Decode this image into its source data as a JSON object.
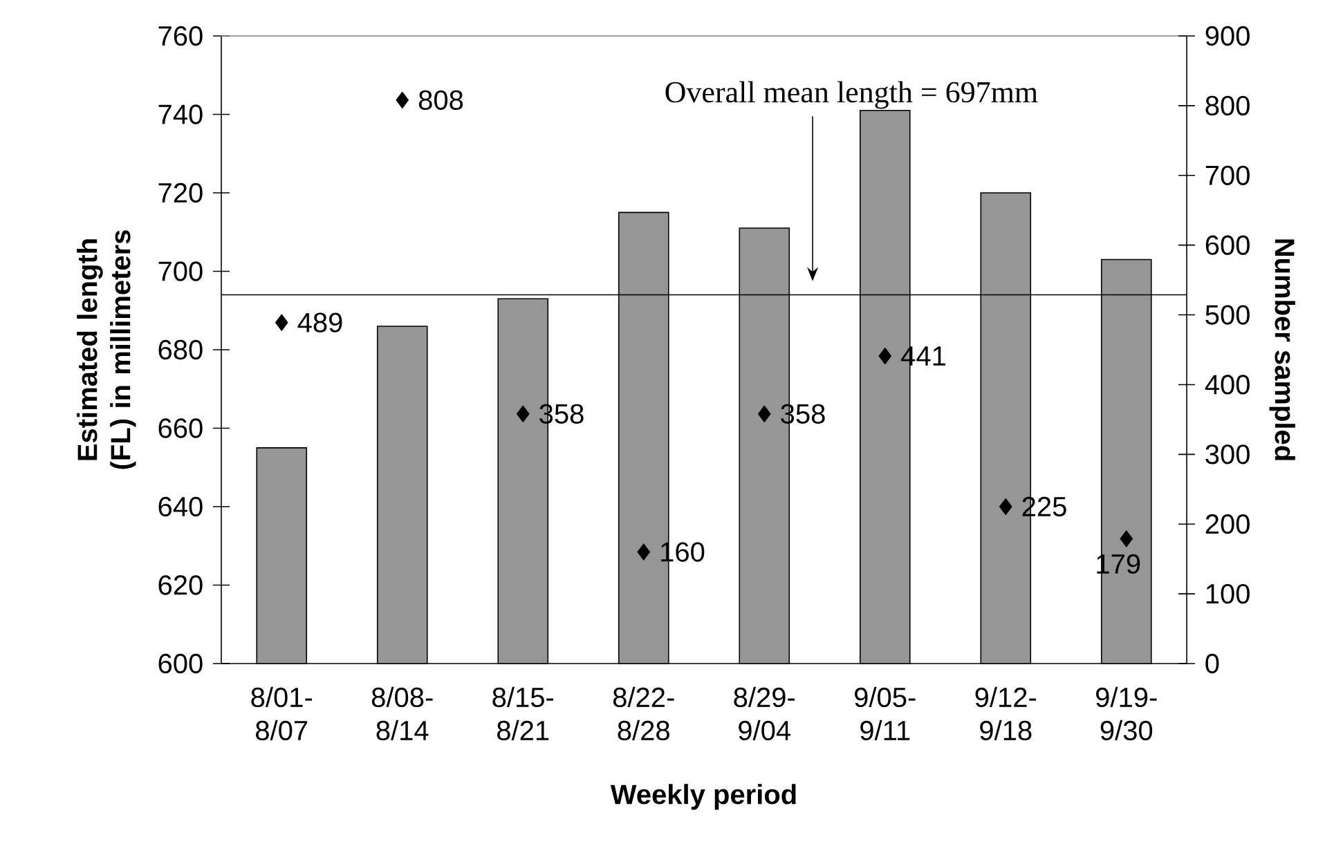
{
  "chart_data": {
    "type": "bar",
    "categories": [
      "8/01-8/07",
      "8/08-8/14",
      "8/15-8/21",
      "8/22-8/28",
      "8/29-9/04",
      "9/05-9/11",
      "9/12-9/18",
      "9/19-9/30"
    ],
    "series": [
      {
        "color": "#969696",
        "values": [
          655,
          686,
          693,
          715,
          711,
          741,
          720,
          703
        ]
      },
      {
        "type": "scatter",
        "axis": "y2",
        "marker": "diamond",
        "color": "#000000",
        "data_labels": true,
        "values": [
          489,
          808,
          358,
          160,
          358,
          441,
          225,
          179
        ]
      }
    ],
    "xlabel": "Weekly period",
    "ylabel": "Estimated length (FL) in millimeters",
    "y2label": "Number sampled",
    "ylim": [
      600,
      760
    ],
    "yticks": [
      600,
      620,
      640,
      660,
      680,
      700,
      720,
      740,
      760
    ],
    "y2lim": [
      0,
      900
    ],
    "y2ticks": [
      0,
      100,
      200,
      300,
      400,
      500,
      600,
      700,
      800,
      900
    ],
    "ref_lines": [
      {
        "axis": "y",
        "value": 694,
        "color": "#000000"
      }
    ],
    "annotations": [
      "Overall  mean length = 697mm"
    ]
  }
}
